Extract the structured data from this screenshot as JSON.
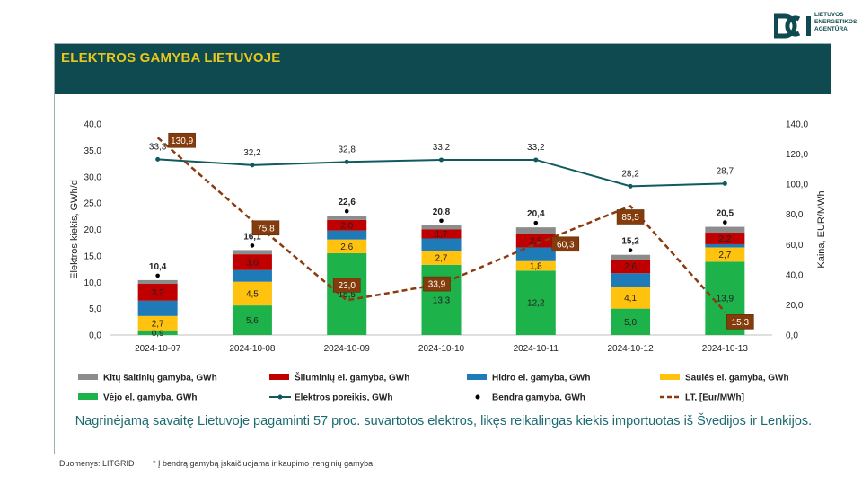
{
  "logo": {
    "line1": "LIETUVOS",
    "line2": "ENERGETIKOS",
    "line3": "AGENTŪRA"
  },
  "header": {
    "title": "ELEKTROS GAMYBA LIETUVOJE"
  },
  "chart_data": {
    "type": "bar",
    "stacked": true,
    "categories": [
      "2024-10-07",
      "2024-10-08",
      "2024-10-09",
      "2024-10-10",
      "2024-10-11",
      "2024-10-12",
      "2024-10-13"
    ],
    "ylabel": "Elektros kiekis, GWh/d",
    "y2label": "Kaina, EUR/MWh",
    "ylim": [
      0,
      40
    ],
    "y2lim": [
      0,
      140
    ],
    "yticks": [
      "0,0",
      "5,0",
      "10,0",
      "15,0",
      "20,0",
      "25,0",
      "30,0",
      "35,0",
      "40,0"
    ],
    "y2ticks": [
      "0,0",
      "20,0",
      "40,0",
      "60,0",
      "80,0",
      "100,0",
      "120,0",
      "140,0"
    ],
    "series": [
      {
        "name": "Vėjo el. gamyba, GWh",
        "color": "#1eb24b",
        "values": [
          0.9,
          5.6,
          15.5,
          13.3,
          12.2,
          5.0,
          13.9
        ],
        "labels": [
          "0,9",
          "5,6",
          "15,5",
          "13,3",
          "12,2",
          "5,0",
          "13,9"
        ]
      },
      {
        "name": "Saulės el. gamyba, GWh",
        "color": "#ffc20e",
        "values": [
          2.7,
          4.5,
          2.6,
          2.7,
          1.8,
          4.1,
          2.7
        ],
        "labels": [
          "2,7",
          "4,5",
          "2,6",
          "2,7",
          "1,8",
          "4,1",
          "2,7"
        ]
      },
      {
        "name": "Hidro el. gamyba, GWh",
        "color": "#1f7ab8",
        "values": [
          2.9,
          2.2,
          1.7,
          2.3,
          2.6,
          2.6,
          0.6
        ],
        "labels": [
          "",
          "",
          "",
          "",
          "",
          "",
          ""
        ]
      },
      {
        "name": "Šiluminių el. gamyba, GWh",
        "color": "#c00000",
        "values": [
          3.2,
          3.0,
          2.0,
          1.7,
          2.5,
          2.6,
          2.2
        ],
        "labels": [
          "3,2",
          "3,0",
          "2,0",
          "1,7",
          "2,5",
          "2,6",
          "2,2"
        ]
      },
      {
        "name": "Kitų šaltinių gamyba,  GWh",
        "color": "#8c8c8c",
        "values": [
          0.7,
          0.8,
          0.8,
          0.8,
          1.3,
          0.9,
          1.1
        ],
        "labels": [
          "",
          "",
          "",
          "",
          "",
          "",
          ""
        ]
      }
    ],
    "total": {
      "name": "Bendra gamyba, GWh",
      "values": [
        10.4,
        16.1,
        22.6,
        20.8,
        20.4,
        15.2,
        20.5
      ],
      "labels": [
        "10,4",
        "16,1",
        "22,6",
        "20,8",
        "20,4",
        "15,2",
        "20,5"
      ]
    },
    "demand": {
      "name": "Elektros poreikis, GWh",
      "color": "#0e5a5f",
      "values": [
        33.3,
        32.2,
        32.8,
        33.2,
        33.2,
        28.2,
        28.7
      ],
      "labels": [
        "33,3",
        "32,2",
        "32,8",
        "33,2",
        "33,2",
        "28,2",
        "28,7"
      ]
    },
    "price": {
      "name": "LT, [Eur/MWh]",
      "color": "#8b3a0e",
      "values": [
        130.9,
        75.8,
        23.0,
        33.9,
        60.3,
        85.5,
        15.3
      ],
      "labels": [
        "130,9",
        "75,8",
        "23,0",
        "33,9",
        "60,3",
        "85,5",
        "15,3"
      ]
    },
    "legend_order": [
      "Kitų šaltinių gamyba,  GWh",
      "Šiluminių el. gamyba, GWh",
      "Hidro el. gamyba, GWh",
      "Saulės el. gamyba, GWh",
      "Vėjo el. gamyba, GWh",
      "Elektros poreikis, GWh",
      "Bendra gamyba, GWh",
      "LT, [Eur/MWh]"
    ],
    "legend_placement": "bottom"
  },
  "summary": "Nagrinėjamą savaitę Lietuvoje pagaminti 57 proc. suvartotos elektros, likęs reikalingas kiekis importuotas iš Švedijos ir Lenkijos.",
  "footer": {
    "source": "Duomenys: LITGRID",
    "note": "* Į bendrą gamybą įskaičiuojama ir kaupimo įrenginių gamyba"
  }
}
